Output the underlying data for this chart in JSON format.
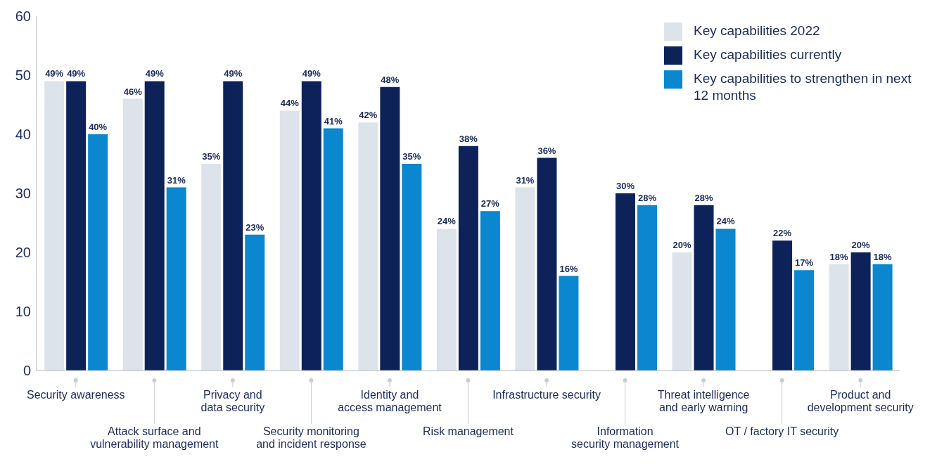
{
  "chart_data": {
    "type": "bar",
    "categories": [
      "Security awareness",
      "Attack surface and\nvulnerability management",
      "Privacy and\ndata security",
      "Security monitoring\nand incident response",
      "Identity and\naccess management",
      "Risk management",
      "Infrastructure security",
      "Information\nsecurity management",
      "Threat intelligence\nand early warning",
      "OT / factory IT security",
      "Product and\ndevelopment security"
    ],
    "series": [
      {
        "name": "Key capabilities 2022",
        "color": "#dde3ea",
        "values": [
          49,
          46,
          35,
          44,
          42,
          24,
          31,
          null,
          20,
          null,
          18
        ],
        "value_labels": [
          "49%",
          "46%",
          "35%",
          "44%",
          "42%",
          "24%",
          "31%",
          null,
          "20%",
          null,
          "18%"
        ]
      },
      {
        "name": "Key capabilities currently",
        "color": "#0d2259",
        "values": [
          49,
          49,
          49,
          49,
          48,
          38,
          36,
          30,
          28,
          22,
          20
        ],
        "value_labels": [
          "49%",
          "49%",
          "49%",
          "49%",
          "48%",
          "38%",
          "36%",
          "30%",
          "28%",
          "22%",
          "20%"
        ]
      },
      {
        "name": "Key capabilities to strengthen in next 12 months",
        "color": "#0a87cf",
        "values": [
          40,
          31,
          23,
          41,
          35,
          27,
          16,
          28,
          24,
          17,
          18
        ],
        "value_labels": [
          "40%",
          "31%",
          "23%",
          "41%",
          "35%",
          "27%",
          "16%",
          "28%",
          "24%",
          "17%",
          "18%"
        ]
      }
    ],
    "ylim": [
      0,
      60
    ],
    "yticks": [
      0,
      10,
      20,
      30,
      40,
      50,
      60
    ],
    "legend": "top right"
  }
}
